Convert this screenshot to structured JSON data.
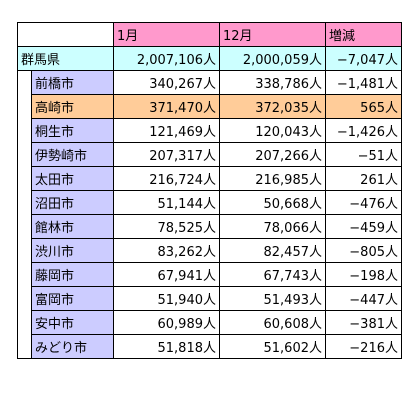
{
  "table": {
    "headers": [
      "1月",
      "12月",
      "増減"
    ],
    "prefecture": {
      "name": "群馬県",
      "jan": "2,007,106人",
      "dec": "2,000,059人",
      "change": "−7,047人"
    },
    "cities": [
      {
        "name": "前橋市",
        "jan": "340,267人",
        "dec": "338,786人",
        "change": "−1,481人",
        "highlight": false
      },
      {
        "name": "高崎市",
        "jan": "371,470人",
        "dec": "372,035人",
        "change": "565人",
        "highlight": true
      },
      {
        "name": "桐生市",
        "jan": "121,469人",
        "dec": "120,043人",
        "change": "−1,426人",
        "highlight": false
      },
      {
        "name": "伊勢崎市",
        "jan": "207,317人",
        "dec": "207,266人",
        "change": "−51人",
        "highlight": false
      },
      {
        "name": "太田市",
        "jan": "216,724人",
        "dec": "216,985人",
        "change": "261人",
        "highlight": false
      },
      {
        "name": "沼田市",
        "jan": "51,144人",
        "dec": "50,668人",
        "change": "−476人",
        "highlight": false
      },
      {
        "name": "館林市",
        "jan": "78,525人",
        "dec": "78,066人",
        "change": "−459人",
        "highlight": false
      },
      {
        "name": "渋川市",
        "jan": "83,262人",
        "dec": "82,457人",
        "change": "−805人",
        "highlight": false
      },
      {
        "name": "藤岡市",
        "jan": "67,941人",
        "dec": "67,743人",
        "change": "−198人",
        "highlight": false
      },
      {
        "name": "富岡市",
        "jan": "51,940人",
        "dec": "51,493人",
        "change": "−447人",
        "highlight": false
      },
      {
        "name": "安中市",
        "jan": "60,989人",
        "dec": "60,608人",
        "change": "−381人",
        "highlight": false
      },
      {
        "name": "みどり市",
        "jan": "51,818人",
        "dec": "51,602人",
        "change": "−216人",
        "highlight": false
      }
    ],
    "colors": {
      "header": "#ff99cc",
      "prefecture": "#ccffff",
      "city": "#ccccff",
      "highlight": "#ffcc99"
    }
  }
}
